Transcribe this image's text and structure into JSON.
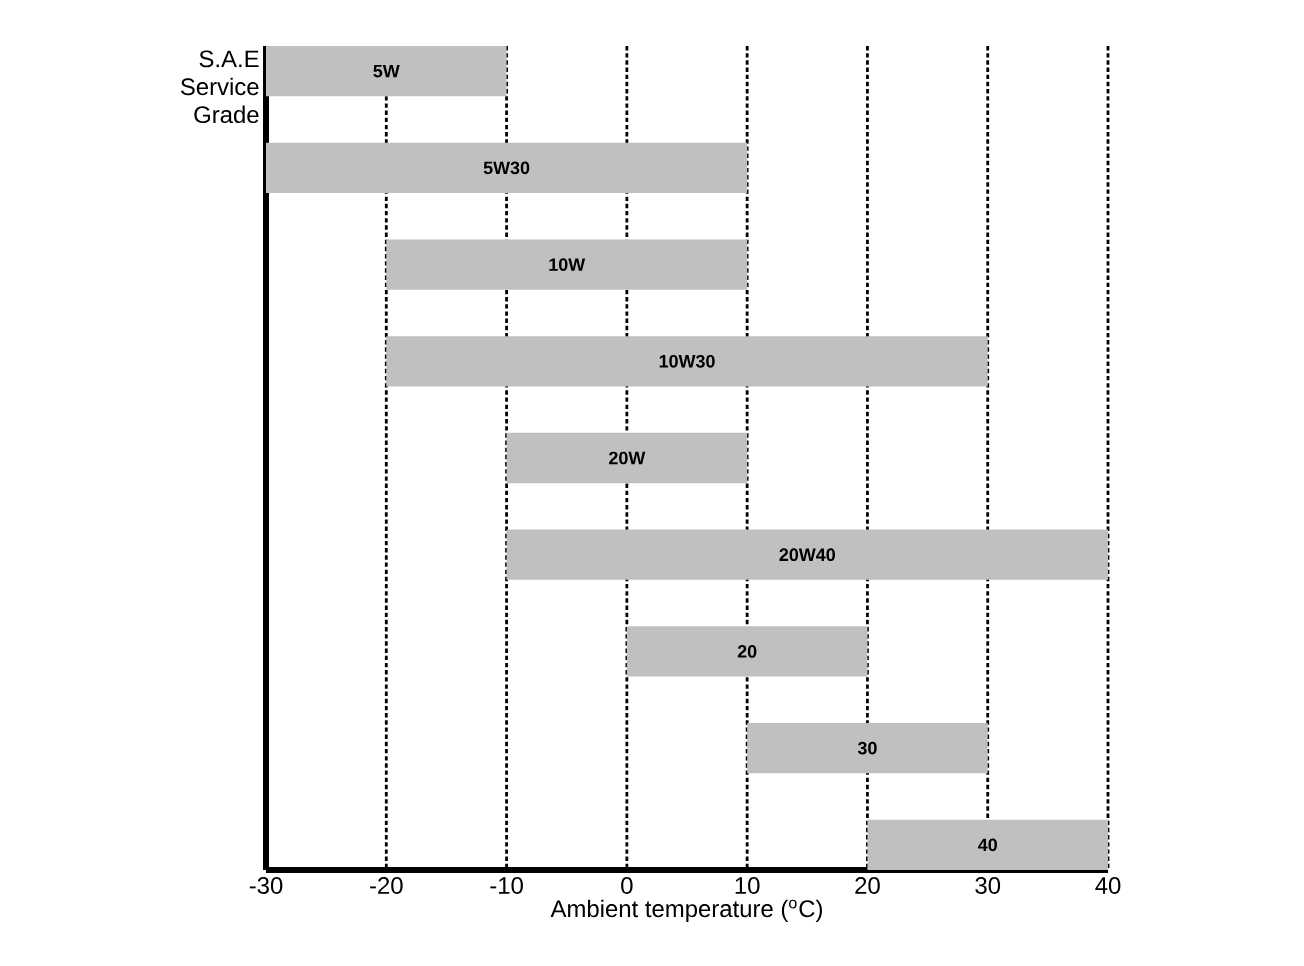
{
  "chart_data": {
    "type": "bar",
    "orientation": "horizontal",
    "ylabel": "S.A.E Service Grade",
    "xlabel": "Ambient temperature ($^{o}$C)",
    "categories": [
      "5W",
      "5W30",
      "10W",
      "10W30",
      "20W",
      "20W40",
      "20",
      "30",
      "40"
    ],
    "base": [
      -30,
      -30,
      -20,
      -20,
      -10,
      -10,
      0,
      10,
      20
    ],
    "values": [
      20,
      40,
      30,
      50,
      20,
      50,
      20,
      20,
      20
    ],
    "color": "#c0c0c0",
    "xlim": [
      -30,
      40
    ],
    "xticks": [
      -30,
      -20,
      -10,
      0,
      10,
      20,
      30,
      40
    ],
    "grid": "x"
  }
}
